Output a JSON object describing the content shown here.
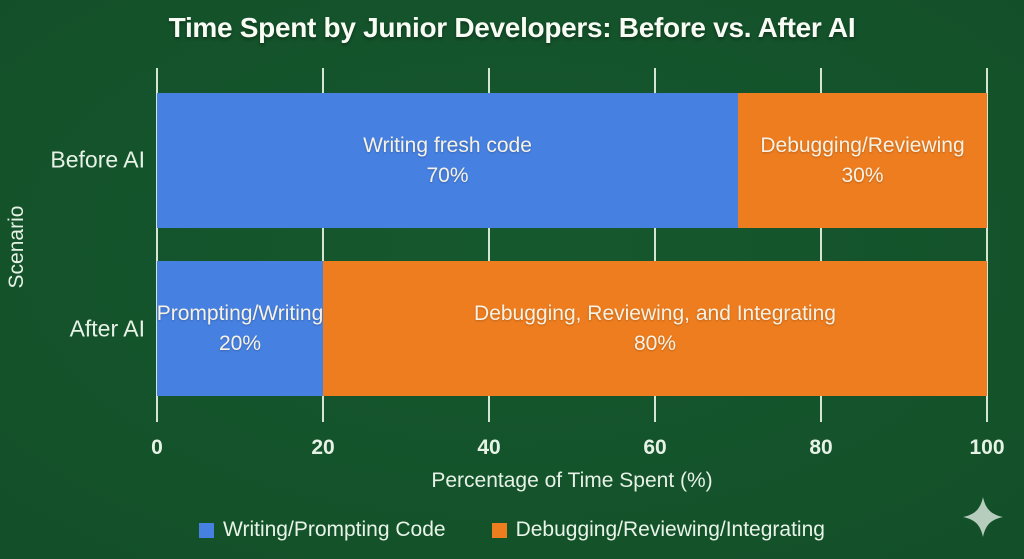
{
  "title": "Time Spent by Junior Developers: Before vs. After AI",
  "chart_data": {
    "type": "bar",
    "orientation": "horizontal",
    "stacked": true,
    "title": "Time Spent by Junior Developers: Before vs. After AI",
    "xlabel": "Percentage of Time Spent (%)",
    "ylabel": "Scenario",
    "categories": [
      "Before AI",
      "After AI"
    ],
    "series": [
      {
        "name": "Writing/Prompting Code",
        "color": "#4681e2",
        "values": [
          70,
          20
        ],
        "segment_labels": [
          "Writing fresh code",
          "Prompting/Writing"
        ],
        "value_labels": [
          "70%",
          "20%"
        ]
      },
      {
        "name": "Debugging/Reviewing/Integrating",
        "color": "#ee7d1f",
        "values": [
          30,
          80
        ],
        "segment_labels": [
          "Debugging/Reviewing",
          "Debugging, Reviewing, and Integrating"
        ],
        "value_labels": [
          "30%",
          "80%"
        ]
      }
    ],
    "xlim": [
      0,
      100
    ],
    "xticks": [
      0,
      20,
      40,
      60,
      80,
      100
    ],
    "grid": true,
    "legend_position": "bottom"
  },
  "colors": {
    "background": "#135029",
    "bar_blue": "#4681e2",
    "bar_orange": "#ee7d1f",
    "grid_line": "#e4f2e2",
    "axis_text": "#e7f2e6",
    "bar_text": "#f8f2e4",
    "title_text": "#f8fcf4",
    "sparkle": "#b6cdbe"
  }
}
